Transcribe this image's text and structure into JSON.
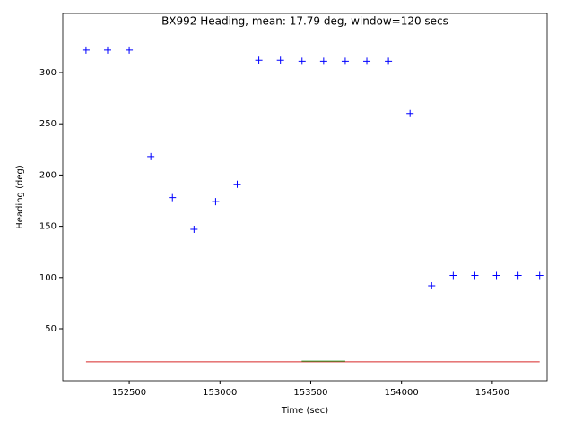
{
  "chart_data": {
    "type": "scatter",
    "title": "BX992 Heading, mean: 17.79 deg, window=120 secs",
    "x_label": "Time (sec)",
    "y_label": "Heading (deg)",
    "xlim": [
      152134,
      154802
    ],
    "ylim": [
      -0.7,
      357.7
    ],
    "xticks": [
      152500,
      153000,
      153500,
      154000,
      154500
    ],
    "yticks": [
      50,
      100,
      150,
      200,
      250,
      300
    ],
    "series": [
      {
        "kind": "points",
        "color": "#0000ff",
        "x": [
          152262,
          152381,
          152500,
          152619,
          152738,
          152857,
          152976,
          153095,
          153214,
          153333,
          153452,
          153571,
          153690,
          153809,
          153928,
          154047,
          154166,
          154285,
          154404,
          154523,
          154642,
          154761
        ],
        "values": [
          322,
          322,
          322,
          218,
          178,
          147,
          174,
          191,
          312,
          312,
          311,
          311,
          311,
          311,
          311,
          260,
          92,
          102,
          102,
          102,
          102,
          102
        ]
      },
      {
        "kind": "line",
        "color": "#d62728",
        "x": [
          152262,
          154761
        ],
        "values": [
          17.79,
          17.79
        ]
      },
      {
        "kind": "line",
        "color": "#2ca02c",
        "x": [
          153450,
          153690
        ],
        "values": [
          18.4,
          18.4
        ]
      }
    ]
  }
}
